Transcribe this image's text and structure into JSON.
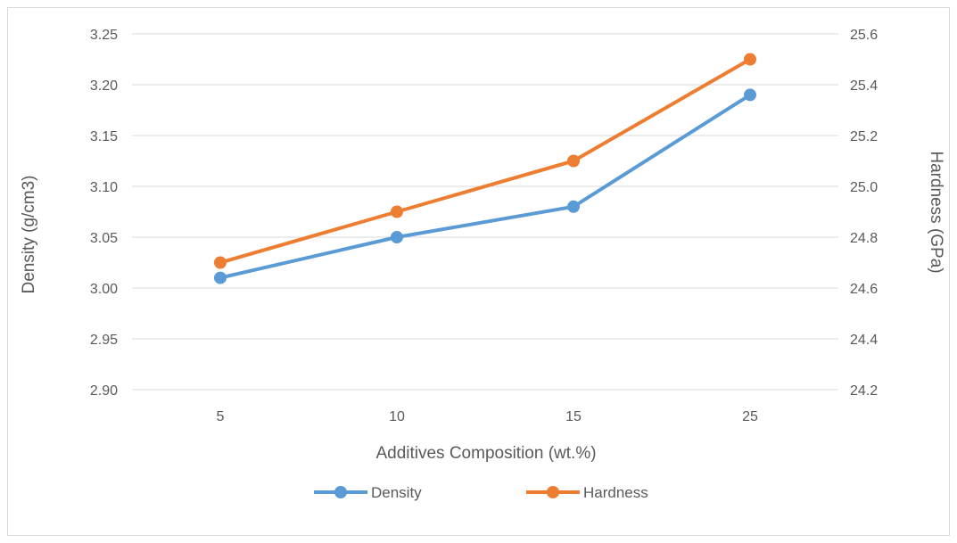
{
  "chart_data": {
    "type": "line",
    "xlabel": "Additives Composition (wt.%)",
    "categories": [
      "5",
      "10",
      "15",
      "25"
    ],
    "y_left": {
      "label": "Density (g/cm3)",
      "ylim": [
        2.9,
        3.25
      ],
      "ticks": [
        "2.90",
        "2.95",
        "3.00",
        "3.05",
        "3.10",
        "3.15",
        "3.20",
        "3.25"
      ]
    },
    "y_right": {
      "label": "Hardness (GPa)",
      "ylim": [
        24.2,
        25.6
      ],
      "ticks": [
        "24.2",
        "24.4",
        "24.6",
        "24.8",
        "25.0",
        "25.2",
        "25.4",
        "25.6"
      ]
    },
    "series": [
      {
        "name": "Density",
        "axis": "left",
        "color": "#5b9bd5",
        "values": [
          3.01,
          3.05,
          3.08,
          3.19
        ]
      },
      {
        "name": "Hardness",
        "axis": "right",
        "color": "#ed7d31",
        "values": [
          24.7,
          24.9,
          25.1,
          25.5
        ]
      }
    ],
    "grid": true,
    "legend": "bottom"
  }
}
